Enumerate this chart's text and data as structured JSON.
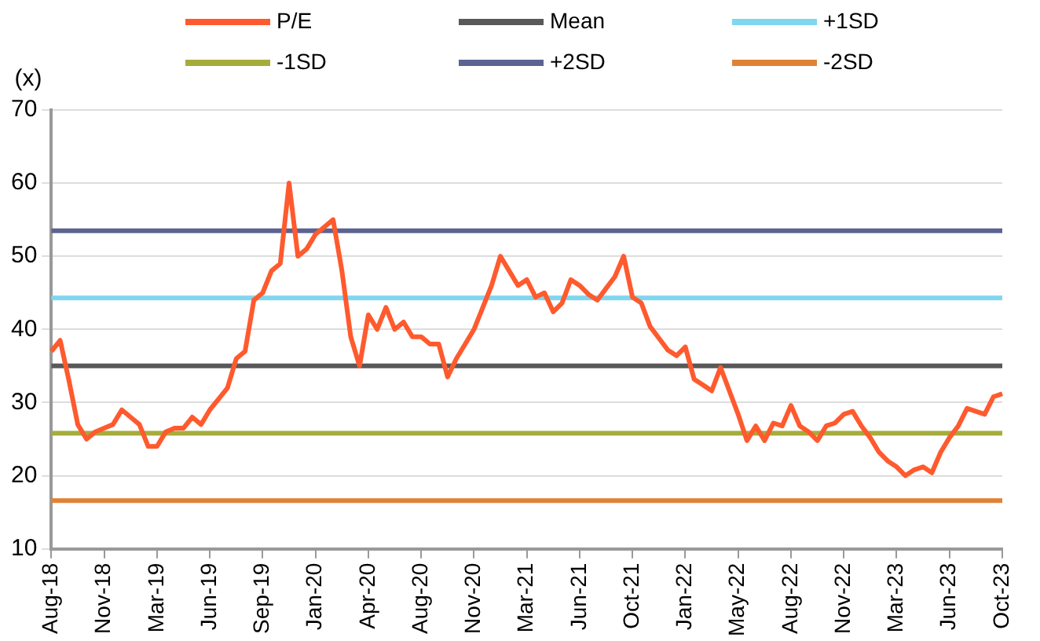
{
  "chart_data": {
    "type": "line",
    "ylabel": "(x)",
    "categories": [
      "Aug-18",
      null,
      null,
      null,
      null,
      null,
      "Nov-18",
      null,
      null,
      null,
      null,
      null,
      "Mar-19",
      null,
      null,
      null,
      null,
      null,
      "Jun-19",
      null,
      null,
      null,
      null,
      null,
      "Sep-19",
      null,
      null,
      null,
      null,
      null,
      "Jan-20",
      null,
      null,
      null,
      null,
      null,
      "Apr-20",
      null,
      null,
      null,
      null,
      null,
      "Aug-20",
      null,
      null,
      null,
      null,
      null,
      "Nov-20",
      null,
      null,
      null,
      null,
      null,
      "Mar-21",
      null,
      null,
      null,
      null,
      null,
      "Jun-21",
      null,
      null,
      null,
      null,
      null,
      "Oct-21",
      null,
      null,
      null,
      null,
      null,
      "Jan-22",
      null,
      null,
      null,
      null,
      null,
      "May-22",
      null,
      null,
      null,
      null,
      null,
      "Aug-22",
      null,
      null,
      null,
      null,
      null,
      "Nov-22",
      null,
      null,
      null,
      null,
      null,
      "Mar-23",
      null,
      null,
      null,
      null,
      null,
      "Jun-23",
      null,
      null,
      null,
      null,
      null,
      "Oct-23"
    ],
    "series": [
      {
        "name": "P/E",
        "color": "#ff5a2e",
        "values": [
          37,
          38.5,
          33,
          27,
          25,
          26,
          26.5,
          27,
          29,
          28,
          27,
          24,
          24,
          26,
          26.5,
          26.5,
          28,
          27,
          29,
          30.5,
          32,
          36,
          37,
          44,
          45,
          48,
          49,
          60,
          50,
          51,
          53,
          54,
          55,
          48,
          39,
          35,
          42,
          40,
          43,
          40,
          41,
          39,
          39,
          38,
          38,
          33.5,
          36,
          38,
          40,
          43,
          46,
          50,
          48,
          46,
          46.8,
          44.4,
          45,
          42.4,
          43.6,
          46.8,
          46,
          44.8,
          44,
          45.6,
          47.2,
          50,
          44.4,
          43.6,
          40.4,
          38.8,
          37.2,
          36.4,
          37.6,
          33.2,
          32.4,
          31.6,
          34.8,
          31.6,
          28.4,
          24.8,
          26.8,
          24.8,
          27.2,
          26.8,
          29.6,
          26.8,
          26,
          24.8,
          26.8,
          27.2,
          28.4,
          28.8,
          26.8,
          25.2,
          23.2,
          22,
          21.2,
          20,
          20.8,
          21.2,
          20.4,
          23.2,
          25.2,
          26.8,
          29.2,
          28.8,
          28.4,
          30.8,
          31.2
        ]
      },
      {
        "name": "Mean",
        "color": "#595959",
        "values": [
          35,
          35,
          35,
          35,
          35,
          35,
          35,
          35,
          35,
          35,
          35,
          35,
          35,
          35,
          35,
          35,
          35,
          35,
          35,
          35,
          35,
          35,
          35,
          35,
          35,
          35,
          35,
          35,
          35,
          35,
          35,
          35,
          35,
          35,
          35,
          35,
          35,
          35,
          35,
          35,
          35,
          35,
          35,
          35,
          35,
          35,
          35,
          35,
          35,
          35,
          35,
          35,
          35,
          35,
          35,
          35,
          35,
          35,
          35,
          35,
          35,
          35,
          35,
          35,
          35,
          35,
          35,
          35,
          35,
          35,
          35,
          35,
          35,
          35,
          35,
          35,
          35,
          35,
          35,
          35,
          35,
          35,
          35,
          35,
          35,
          35,
          35,
          35,
          35,
          35,
          35,
          35,
          35,
          35,
          35,
          35,
          35,
          35,
          35,
          35,
          35,
          35,
          35,
          35,
          35,
          35,
          35,
          35,
          35
        ]
      },
      {
        "name": "+1SD",
        "color": "#7fd6ee",
        "values": [
          44.3,
          44.3,
          44.3,
          44.3,
          44.3,
          44.3,
          44.3,
          44.3,
          44.3,
          44.3,
          44.3,
          44.3,
          44.3,
          44.3,
          44.3,
          44.3,
          44.3,
          44.3,
          44.3,
          44.3,
          44.3,
          44.3,
          44.3,
          44.3,
          44.3,
          44.3,
          44.3,
          44.3,
          44.3,
          44.3,
          44.3,
          44.3,
          44.3,
          44.3,
          44.3,
          44.3,
          44.3,
          44.3,
          44.3,
          44.3,
          44.3,
          44.3,
          44.3,
          44.3,
          44.3,
          44.3,
          44.3,
          44.3,
          44.3,
          44.3,
          44.3,
          44.3,
          44.3,
          44.3,
          44.3,
          44.3,
          44.3,
          44.3,
          44.3,
          44.3,
          44.3,
          44.3,
          44.3,
          44.3,
          44.3,
          44.3,
          44.3,
          44.3,
          44.3,
          44.3,
          44.3,
          44.3,
          44.3,
          44.3,
          44.3,
          44.3,
          44.3,
          44.3,
          44.3,
          44.3,
          44.3,
          44.3,
          44.3,
          44.3,
          44.3,
          44.3,
          44.3,
          44.3,
          44.3,
          44.3,
          44.3,
          44.3,
          44.3,
          44.3,
          44.3,
          44.3,
          44.3,
          44.3,
          44.3,
          44.3,
          44.3,
          44.3,
          44.3,
          44.3,
          44.3,
          44.3,
          44.3,
          44.3,
          44.3
        ]
      },
      {
        "name": "-1SD",
        "color": "#a6ac3a",
        "values": [
          25.8,
          25.8,
          25.8,
          25.8,
          25.8,
          25.8,
          25.8,
          25.8,
          25.8,
          25.8,
          25.8,
          25.8,
          25.8,
          25.8,
          25.8,
          25.8,
          25.8,
          25.8,
          25.8,
          25.8,
          25.8,
          25.8,
          25.8,
          25.8,
          25.8,
          25.8,
          25.8,
          25.8,
          25.8,
          25.8,
          25.8,
          25.8,
          25.8,
          25.8,
          25.8,
          25.8,
          25.8,
          25.8,
          25.8,
          25.8,
          25.8,
          25.8,
          25.8,
          25.8,
          25.8,
          25.8,
          25.8,
          25.8,
          25.8,
          25.8,
          25.8,
          25.8,
          25.8,
          25.8,
          25.8,
          25.8,
          25.8,
          25.8,
          25.8,
          25.8,
          25.8,
          25.8,
          25.8,
          25.8,
          25.8,
          25.8,
          25.8,
          25.8,
          25.8,
          25.8,
          25.8,
          25.8,
          25.8,
          25.8,
          25.8,
          25.8,
          25.8,
          25.8,
          25.8,
          25.8,
          25.8,
          25.8,
          25.8,
          25.8,
          25.8,
          25.8,
          25.8,
          25.8,
          25.8,
          25.8,
          25.8,
          25.8,
          25.8,
          25.8,
          25.8,
          25.8,
          25.8,
          25.8,
          25.8,
          25.8,
          25.8,
          25.8,
          25.8,
          25.8,
          25.8,
          25.8,
          25.8,
          25.8,
          25.8
        ]
      },
      {
        "name": "+2SD",
        "color": "#5b6491",
        "values": [
          53.5,
          53.5,
          53.5,
          53.5,
          53.5,
          53.5,
          53.5,
          53.5,
          53.5,
          53.5,
          53.5,
          53.5,
          53.5,
          53.5,
          53.5,
          53.5,
          53.5,
          53.5,
          53.5,
          53.5,
          53.5,
          53.5,
          53.5,
          53.5,
          53.5,
          53.5,
          53.5,
          53.5,
          53.5,
          53.5,
          53.5,
          53.5,
          53.5,
          53.5,
          53.5,
          53.5,
          53.5,
          53.5,
          53.5,
          53.5,
          53.5,
          53.5,
          53.5,
          53.5,
          53.5,
          53.5,
          53.5,
          53.5,
          53.5,
          53.5,
          53.5,
          53.5,
          53.5,
          53.5,
          53.5,
          53.5,
          53.5,
          53.5,
          53.5,
          53.5,
          53.5,
          53.5,
          53.5,
          53.5,
          53.5,
          53.5,
          53.5,
          53.5,
          53.5,
          53.5,
          53.5,
          53.5,
          53.5,
          53.5,
          53.5,
          53.5,
          53.5,
          53.5,
          53.5,
          53.5,
          53.5,
          53.5,
          53.5,
          53.5,
          53.5,
          53.5,
          53.5,
          53.5,
          53.5,
          53.5,
          53.5,
          53.5,
          53.5,
          53.5,
          53.5,
          53.5,
          53.5,
          53.5,
          53.5,
          53.5,
          53.5,
          53.5,
          53.5,
          53.5,
          53.5,
          53.5,
          53.5,
          53.5,
          53.5
        ]
      },
      {
        "name": "-2SD",
        "color": "#e08236",
        "values": [
          16.6,
          16.6,
          16.6,
          16.6,
          16.6,
          16.6,
          16.6,
          16.6,
          16.6,
          16.6,
          16.6,
          16.6,
          16.6,
          16.6,
          16.6,
          16.6,
          16.6,
          16.6,
          16.6,
          16.6,
          16.6,
          16.6,
          16.6,
          16.6,
          16.6,
          16.6,
          16.6,
          16.6,
          16.6,
          16.6,
          16.6,
          16.6,
          16.6,
          16.6,
          16.6,
          16.6,
          16.6,
          16.6,
          16.6,
          16.6,
          16.6,
          16.6,
          16.6,
          16.6,
          16.6,
          16.6,
          16.6,
          16.6,
          16.6,
          16.6,
          16.6,
          16.6,
          16.6,
          16.6,
          16.6,
          16.6,
          16.6,
          16.6,
          16.6,
          16.6,
          16.6,
          16.6,
          16.6,
          16.6,
          16.6,
          16.6,
          16.6,
          16.6,
          16.6,
          16.6,
          16.6,
          16.6,
          16.6,
          16.6,
          16.6,
          16.6,
          16.6,
          16.6,
          16.6,
          16.6,
          16.6,
          16.6,
          16.6,
          16.6,
          16.6,
          16.6,
          16.6,
          16.6,
          16.6,
          16.6,
          16.6,
          16.6,
          16.6,
          16.6,
          16.6,
          16.6,
          16.6,
          16.6,
          16.6,
          16.6,
          16.6,
          16.6,
          16.6,
          16.6,
          16.6,
          16.6,
          16.6,
          16.6,
          16.6
        ]
      }
    ],
    "ylim": [
      10,
      70
    ],
    "yticks": [
      10,
      20,
      30,
      40,
      50,
      60,
      70
    ],
    "grid": "y",
    "legend": "top",
    "marker": "none",
    "line_style": "solid"
  }
}
